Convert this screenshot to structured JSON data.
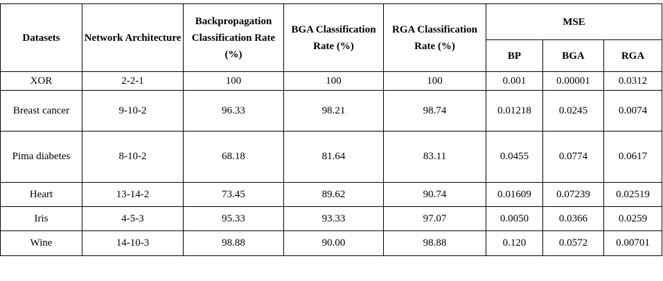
{
  "table": {
    "headers": {
      "datasets": "Datasets",
      "network_architecture": "Network Architecture",
      "bp_rate": "Backpropagation Classification Rate (%)",
      "bga_rate": "BGA Classification Rate (%)",
      "rga_rate": "RGA Classification Rate (%)",
      "mse": "MSE",
      "mse_bp": "BP",
      "mse_bga": "BGA",
      "mse_rga": "RGA"
    },
    "rows": [
      {
        "dataset": "XOR",
        "arch": "2-2-1",
        "bp_rate": "100",
        "bga_rate": "100",
        "rga_rate": "100",
        "mse_bp": "0.001",
        "mse_bga": "0.00001",
        "mse_rga": "0.0312"
      },
      {
        "dataset": "Breast cancer",
        "arch": "9-10-2",
        "bp_rate": "96.33",
        "bga_rate": "98.21",
        "rga_rate": "98.74",
        "mse_bp": "0.01218",
        "mse_bga": "0.0245",
        "mse_rga": "0.0074"
      },
      {
        "dataset": "Pima diabetes",
        "arch": "8-10-2",
        "bp_rate": "68.18",
        "bga_rate": "81.64",
        "rga_rate": "83.11",
        "mse_bp": "0.0455",
        "mse_bga": "0.0774",
        "mse_rga": "0.0617"
      },
      {
        "dataset": "Heart",
        "arch": "13-14-2",
        "bp_rate": "73.45",
        "bga_rate": "89.62",
        "rga_rate": "90.74",
        "mse_bp": "0.01609",
        "mse_bga": "0.07239",
        "mse_rga": "0.02519"
      },
      {
        "dataset": "Iris",
        "arch": "4-5-3",
        "bp_rate": "95.33",
        "bga_rate": "93.33",
        "rga_rate": "97.07",
        "mse_bp": "0.0050",
        "mse_bga": "0.0366",
        "mse_rga": "0.0259"
      },
      {
        "dataset": "Wine",
        "arch": "14-10-3",
        "bp_rate": "98.88",
        "bga_rate": "90.00",
        "rga_rate": "98.88",
        "mse_bp": "0.120",
        "mse_bga": "0.0572",
        "mse_rga": "0.00701"
      }
    ]
  }
}
